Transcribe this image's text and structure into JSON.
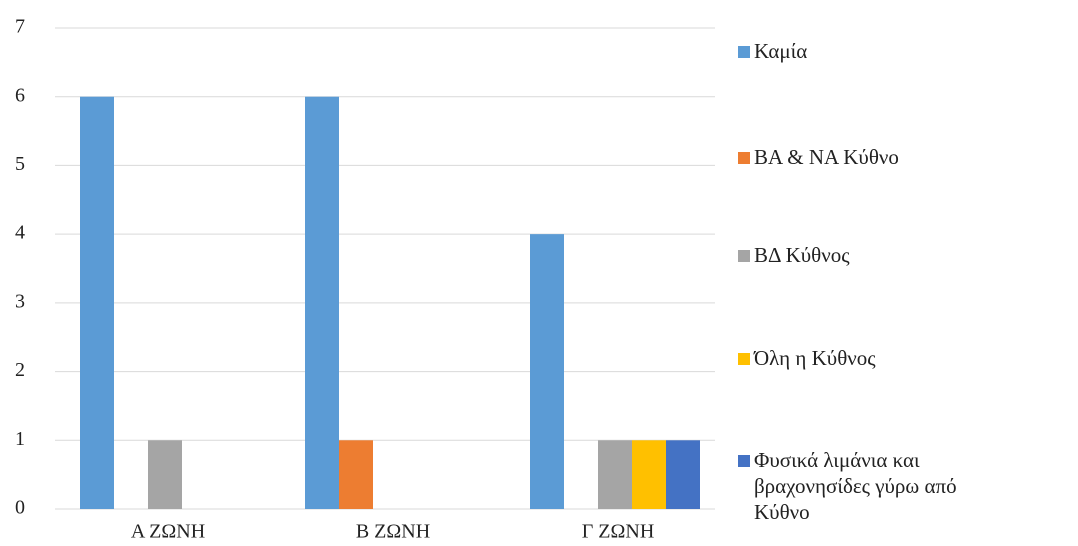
{
  "chart_data": {
    "type": "bar",
    "categories": [
      "Α ΖΩΝΗ",
      "Β ΖΩΝΗ",
      "Γ ΖΩΝΗ"
    ],
    "series": [
      {
        "name": "Καμία",
        "color": "#5B9BD5",
        "values": [
          6,
          6,
          4
        ]
      },
      {
        "name": "ΒΑ & ΝΑ Κύθνο",
        "color": "#ED7D31",
        "values": [
          0,
          1,
          0
        ]
      },
      {
        "name": "ΒΔ Κύθνος",
        "color": "#A5A5A5",
        "values": [
          1,
          0,
          1
        ]
      },
      {
        "name": "Όλη η Κύθνος",
        "color": "#FFC000",
        "values": [
          0,
          0,
          1
        ]
      },
      {
        "name": "Φυσικά λιμάνια και βραχονησίδες γύρω από Κύθνο",
        "color": "#4472C4",
        "values": [
          0,
          0,
          1
        ]
      }
    ],
    "ylim": [
      0,
      7
    ],
    "yticks": [
      0,
      1,
      2,
      3,
      4,
      5,
      6,
      7
    ],
    "grid": true,
    "legend": "right"
  }
}
